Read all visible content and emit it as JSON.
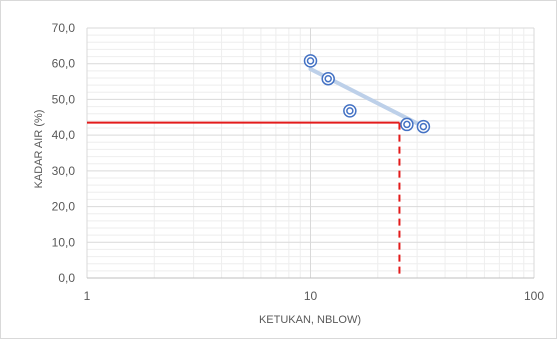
{
  "chart_data": {
    "type": "scatter",
    "title": "",
    "xlabel": "KETUKAN, NBLOW)",
    "ylabel": "KADAR AIR (%)",
    "x_scale": "log",
    "xlim": [
      1,
      100
    ],
    "ylim": [
      0,
      70
    ],
    "x_ticks": [
      1,
      10,
      100
    ],
    "x_tick_labels": [
      "1",
      "10",
      "100"
    ],
    "y_ticks": [
      0,
      10,
      20,
      30,
      40,
      50,
      60,
      70
    ],
    "y_tick_labels": [
      "0,0",
      "10,0",
      "20,0",
      "30,0",
      "40,0",
      "50,0",
      "60,0",
      "70,0"
    ],
    "grid": true,
    "legend": "none",
    "series": [
      {
        "x": [
          10,
          12,
          15,
          27,
          32
        ],
        "y": [
          60.8,
          55.8,
          46.8,
          43.0,
          42.4
        ]
      }
    ],
    "trendline": {
      "x": [
        10,
        32
      ],
      "y": [
        58.5,
        42.4
      ]
    },
    "reference_lines": {
      "horizontal": {
        "y": 43.5,
        "x_from": 1,
        "x_to": 25
      },
      "vertical": {
        "x": 25,
        "y_from": 0,
        "y_to": 43.5
      }
    },
    "colors": {
      "marker": "#4472c4",
      "trendline": "#bdd0e9",
      "reference": "#e31b1b",
      "grid": "#d9d9d9",
      "axis_text": "#595959"
    }
  }
}
